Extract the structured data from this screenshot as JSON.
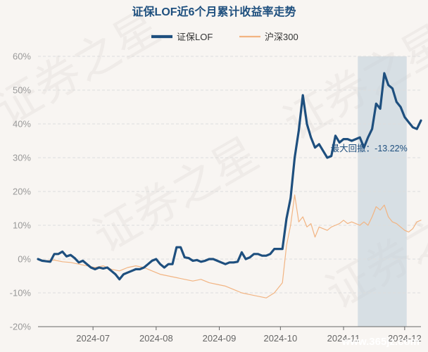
{
  "watermark": {
    "text": "证券之星",
    "site": "www.365jz.com"
  },
  "chart_data": {
    "type": "line",
    "title": "证保LOF近6个月累计收益率走势",
    "legend_position": "top",
    "grid": true,
    "ylim": [
      -20,
      60
    ],
    "y_ticks": [
      60,
      50,
      40,
      30,
      20,
      10,
      0,
      -10,
      -20
    ],
    "y_tick_labels": [
      "60%",
      "50%",
      "40%",
      "30%",
      "20%",
      "10%",
      "0%",
      "-10%",
      "-20%"
    ],
    "x_range": [
      "2024-06-04",
      "2024-12-09"
    ],
    "x_ticks": [
      "2024-07-01",
      "2024-08-01",
      "2024-09-01",
      "2024-10-01",
      "2024-11-01",
      "2024-12-01"
    ],
    "x_tick_labels": [
      "2024-07",
      "2024-08",
      "2024-09",
      "2024-10",
      "2024-11",
      "2024-12"
    ],
    "annotation": {
      "label": "最大回撤：-13.22%",
      "from": "2024-11-08",
      "to": "2024-12-02",
      "color": "#c5d3dc"
    },
    "series": [
      {
        "name": "证保LOF",
        "color": "#1e4f7e",
        "points": [
          [
            "2024-06-04",
            0.0
          ],
          [
            "2024-06-06",
            -0.5
          ],
          [
            "2024-06-10",
            -0.8
          ],
          [
            "2024-06-12",
            1.5
          ],
          [
            "2024-06-14",
            1.5
          ],
          [
            "2024-06-16",
            2.2
          ],
          [
            "2024-06-18",
            0.8
          ],
          [
            "2024-06-20",
            1.2
          ],
          [
            "2024-06-22",
            0.3
          ],
          [
            "2024-06-24",
            -1.0
          ],
          [
            "2024-06-26",
            -0.5
          ],
          [
            "2024-06-28",
            -1.5
          ],
          [
            "2024-06-30",
            -2.5
          ],
          [
            "2024-07-02",
            -3.0
          ],
          [
            "2024-07-04",
            -2.5
          ],
          [
            "2024-07-06",
            -2.8
          ],
          [
            "2024-07-08",
            -2.5
          ],
          [
            "2024-07-10",
            -3.5
          ],
          [
            "2024-07-12",
            -4.5
          ],
          [
            "2024-07-14",
            -6.0
          ],
          [
            "2024-07-16",
            -4.5
          ],
          [
            "2024-07-18",
            -4.0
          ],
          [
            "2024-07-20",
            -3.5
          ],
          [
            "2024-07-22",
            -3.0
          ],
          [
            "2024-07-24",
            -3.0
          ],
          [
            "2024-07-26",
            -2.5
          ],
          [
            "2024-07-28",
            -1.5
          ],
          [
            "2024-07-30",
            -0.5
          ],
          [
            "2024-08-01",
            0.0
          ],
          [
            "2024-08-03",
            -1.5
          ],
          [
            "2024-08-05",
            -2.5
          ],
          [
            "2024-08-07",
            -1.5
          ],
          [
            "2024-08-09",
            -1.5
          ],
          [
            "2024-08-11",
            3.5
          ],
          [
            "2024-08-13",
            3.5
          ],
          [
            "2024-08-15",
            0.5
          ],
          [
            "2024-08-17",
            0.3
          ],
          [
            "2024-08-19",
            -0.5
          ],
          [
            "2024-08-21",
            -0.3
          ],
          [
            "2024-08-23",
            -0.8
          ],
          [
            "2024-08-25",
            -0.5
          ],
          [
            "2024-08-27",
            0.0
          ],
          [
            "2024-08-29",
            0.0
          ],
          [
            "2024-08-31",
            -0.5
          ],
          [
            "2024-09-02",
            -1.0
          ],
          [
            "2024-09-04",
            -1.5
          ],
          [
            "2024-09-06",
            -1.0
          ],
          [
            "2024-09-08",
            -1.0
          ],
          [
            "2024-09-10",
            -0.8
          ],
          [
            "2024-09-12",
            2.0
          ],
          [
            "2024-09-14",
            0.0
          ],
          [
            "2024-09-16",
            0.5
          ],
          [
            "2024-09-18",
            1.5
          ],
          [
            "2024-09-20",
            1.5
          ],
          [
            "2024-09-22",
            1.0
          ],
          [
            "2024-09-24",
            1.0
          ],
          [
            "2024-09-26",
            1.5
          ],
          [
            "2024-09-28",
            3.0
          ],
          [
            "2024-09-30",
            3.0
          ],
          [
            "2024-10-02",
            3.0
          ],
          [
            "2024-10-04",
            12.0
          ],
          [
            "2024-10-06",
            18.0
          ],
          [
            "2024-10-08",
            30.0
          ],
          [
            "2024-10-10",
            38.0
          ],
          [
            "2024-10-12",
            48.5
          ],
          [
            "2024-10-14",
            40.0
          ],
          [
            "2024-10-16",
            36.0
          ],
          [
            "2024-10-18",
            33.0
          ],
          [
            "2024-10-20",
            34.0
          ],
          [
            "2024-10-22",
            32.0
          ],
          [
            "2024-10-24",
            30.0
          ],
          [
            "2024-10-26",
            30.5
          ],
          [
            "2024-10-28",
            36.5
          ],
          [
            "2024-10-30",
            34.5
          ],
          [
            "2024-11-01",
            35.5
          ],
          [
            "2024-11-03",
            35.5
          ],
          [
            "2024-11-05",
            35.0
          ],
          [
            "2024-11-07",
            35.5
          ],
          [
            "2024-11-09",
            36.0
          ],
          [
            "2024-11-11",
            33.0
          ],
          [
            "2024-11-13",
            36.0
          ],
          [
            "2024-11-15",
            38.5
          ],
          [
            "2024-11-17",
            46.0
          ],
          [
            "2024-11-19",
            44.5
          ],
          [
            "2024-11-21",
            55.0
          ],
          [
            "2024-11-23",
            51.5
          ],
          [
            "2024-11-25",
            50.5
          ],
          [
            "2024-11-27",
            46.5
          ],
          [
            "2024-11-29",
            45.0
          ],
          [
            "2024-12-01",
            42.0
          ],
          [
            "2024-12-03",
            40.5
          ],
          [
            "2024-12-05",
            39.0
          ],
          [
            "2024-12-07",
            38.5
          ],
          [
            "2024-12-09",
            41.0
          ]
        ]
      },
      {
        "name": "沪深300",
        "color": "#f2b482",
        "points": [
          [
            "2024-06-04",
            0.0
          ],
          [
            "2024-06-08",
            -0.5
          ],
          [
            "2024-06-12",
            -0.3
          ],
          [
            "2024-06-16",
            -0.8
          ],
          [
            "2024-06-20",
            -1.0
          ],
          [
            "2024-06-24",
            -1.5
          ],
          [
            "2024-06-28",
            -2.0
          ],
          [
            "2024-07-02",
            -2.5
          ],
          [
            "2024-07-06",
            -2.0
          ],
          [
            "2024-07-10",
            -3.0
          ],
          [
            "2024-07-14",
            -3.5
          ],
          [
            "2024-07-18",
            -2.5
          ],
          [
            "2024-07-22",
            -2.0
          ],
          [
            "2024-07-26",
            -2.5
          ],
          [
            "2024-07-30",
            -3.5
          ],
          [
            "2024-08-03",
            -4.5
          ],
          [
            "2024-08-07",
            -5.0
          ],
          [
            "2024-08-11",
            -5.5
          ],
          [
            "2024-08-15",
            -6.0
          ],
          [
            "2024-08-19",
            -6.5
          ],
          [
            "2024-08-23",
            -6.0
          ],
          [
            "2024-08-27",
            -7.0
          ],
          [
            "2024-08-31",
            -7.5
          ],
          [
            "2024-09-04",
            -8.0
          ],
          [
            "2024-09-08",
            -9.0
          ],
          [
            "2024-09-12",
            -10.0
          ],
          [
            "2024-09-16",
            -10.5
          ],
          [
            "2024-09-20",
            -11.0
          ],
          [
            "2024-09-24",
            -11.5
          ],
          [
            "2024-09-28",
            -10.0
          ],
          [
            "2024-10-02",
            -7.0
          ],
          [
            "2024-10-04",
            4.0
          ],
          [
            "2024-10-06",
            10.0
          ],
          [
            "2024-10-08",
            19.0
          ],
          [
            "2024-10-10",
            11.0
          ],
          [
            "2024-10-12",
            12.5
          ],
          [
            "2024-10-14",
            9.5
          ],
          [
            "2024-10-16",
            10.5
          ],
          [
            "2024-10-18",
            6.5
          ],
          [
            "2024-10-20",
            9.5
          ],
          [
            "2024-10-22",
            9.0
          ],
          [
            "2024-10-24",
            8.5
          ],
          [
            "2024-10-26",
            9.5
          ],
          [
            "2024-10-28",
            10.0
          ],
          [
            "2024-10-30",
            10.5
          ],
          [
            "2024-11-01",
            11.5
          ],
          [
            "2024-11-03",
            10.5
          ],
          [
            "2024-11-05",
            11.0
          ],
          [
            "2024-11-07",
            10.5
          ],
          [
            "2024-11-09",
            10.0
          ],
          [
            "2024-11-11",
            11.0
          ],
          [
            "2024-11-13",
            10.0
          ],
          [
            "2024-11-15",
            12.5
          ],
          [
            "2024-11-17",
            15.5
          ],
          [
            "2024-11-19",
            14.5
          ],
          [
            "2024-11-21",
            16.0
          ],
          [
            "2024-11-23",
            12.5
          ],
          [
            "2024-11-25",
            11.0
          ],
          [
            "2024-11-27",
            10.5
          ],
          [
            "2024-11-29",
            9.5
          ],
          [
            "2024-12-01",
            8.5
          ],
          [
            "2024-12-03",
            8.0
          ],
          [
            "2024-12-05",
            9.0
          ],
          [
            "2024-12-07",
            11.0
          ],
          [
            "2024-12-09",
            11.5
          ]
        ]
      }
    ]
  }
}
